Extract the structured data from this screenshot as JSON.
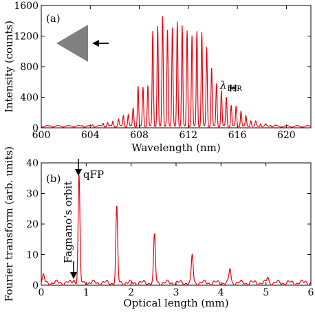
{
  "colors": {
    "data": "#e8000b",
    "axes": "#000000",
    "prism": "#808080"
  },
  "chart_data": [
    {
      "panel": "(a)",
      "type": "line",
      "xlabel": "Wavelength (nm)",
      "ylabel": "Intensity (counts)",
      "xlim": [
        600,
        622
      ],
      "ylim": [
        0,
        1600
      ],
      "xticks": [
        600,
        604,
        608,
        612,
        616,
        620
      ],
      "yticks": [
        0,
        400,
        800,
        1200,
        1600
      ],
      "baseline": 20,
      "peak_width_nm": 0.07,
      "peaks": [
        {
          "x": 600.8,
          "y": 30
        },
        {
          "x": 601.65,
          "y": 25
        },
        {
          "x": 602.5,
          "y": 30
        },
        {
          "x": 603.35,
          "y": 35
        },
        {
          "x": 604.2,
          "y": 45
        },
        {
          "x": 605.05,
          "y": 65
        },
        {
          "x": 605.4,
          "y": 70
        },
        {
          "x": 605.85,
          "y": 90
        },
        {
          "x": 606.3,
          "y": 110
        },
        {
          "x": 606.7,
          "y": 160
        },
        {
          "x": 607.1,
          "y": 170
        },
        {
          "x": 607.5,
          "y": 260
        },
        {
          "x": 607.9,
          "y": 550
        },
        {
          "x": 608.3,
          "y": 530
        },
        {
          "x": 608.7,
          "y": 560
        },
        {
          "x": 609.1,
          "y": 1260
        },
        {
          "x": 609.5,
          "y": 1340
        },
        {
          "x": 609.9,
          "y": 1450
        },
        {
          "x": 610.3,
          "y": 1290
        },
        {
          "x": 610.7,
          "y": 1300
        },
        {
          "x": 611.1,
          "y": 1400
        },
        {
          "x": 611.5,
          "y": 1330
        },
        {
          "x": 611.9,
          "y": 1280
        },
        {
          "x": 612.3,
          "y": 1200
        },
        {
          "x": 612.7,
          "y": 1270
        },
        {
          "x": 613.1,
          "y": 1250
        },
        {
          "x": 613.5,
          "y": 1060
        },
        {
          "x": 613.9,
          "y": 780
        },
        {
          "x": 614.3,
          "y": 580
        },
        {
          "x": 614.7,
          "y": 490
        },
        {
          "x": 615.1,
          "y": 400
        },
        {
          "x": 615.5,
          "y": 300
        },
        {
          "x": 615.9,
          "y": 280
        },
        {
          "x": 616.3,
          "y": 230
        },
        {
          "x": 616.7,
          "y": 150
        },
        {
          "x": 617.1,
          "y": 100
        },
        {
          "x": 617.5,
          "y": 80
        },
        {
          "x": 617.9,
          "y": 60
        },
        {
          "x": 618.3,
          "y": 45
        },
        {
          "x": 618.7,
          "y": 40
        },
        {
          "x": 619.1,
          "y": 30
        }
      ],
      "annotation": {
        "symbol": "λ",
        "subscript": "FSR",
        "range_nm": [
          615.45,
          615.85
        ],
        "y": 520
      }
    },
    {
      "panel": "(b)",
      "type": "line",
      "xlabel": "Optical length (mm)",
      "ylabel": "Fourier transform (arb. units)",
      "xlim": [
        0,
        6
      ],
      "ylim": [
        0,
        40
      ],
      "xticks": [
        0,
        1,
        2,
        3,
        4,
        5,
        6
      ],
      "yticks": [
        0,
        10,
        20,
        30,
        40
      ],
      "baseline": 0.8,
      "peak_width_mm": 0.028,
      "peaks": [
        {
          "x": 0.05,
          "y": 3.2
        },
        {
          "x": 0.72,
          "y": 2.0
        },
        {
          "x": 0.84,
          "y": 35.5
        },
        {
          "x": 1.68,
          "y": 25.2
        },
        {
          "x": 2.52,
          "y": 16.3
        },
        {
          "x": 3.36,
          "y": 9.8
        },
        {
          "x": 4.2,
          "y": 5.4
        },
        {
          "x": 5.04,
          "y": 2.6
        },
        {
          "x": 5.88,
          "y": 1.2
        }
      ],
      "annotations": [
        {
          "text": "qFP",
          "x": 0.84
        },
        {
          "text": "Fagnano’s orbit",
          "x": 0.72
        }
      ]
    }
  ]
}
